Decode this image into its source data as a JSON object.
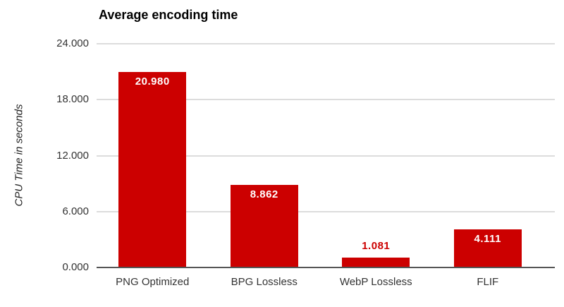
{
  "chart_data": {
    "type": "bar",
    "title": "Average encoding time",
    "xlabel": "",
    "ylabel": "CPU Time in seconds",
    "categories": [
      "PNG Optimized",
      "BPG Lossless",
      "WebP Lossless",
      "FLIF"
    ],
    "values": [
      20.98,
      8.862,
      1.081,
      4.111
    ],
    "value_labels": [
      "20.980",
      "8.862",
      "1.081",
      "4.111"
    ],
    "ylim": [
      0,
      24
    ],
    "y_ticks": [
      {
        "value": 24,
        "label": "24.000"
      },
      {
        "value": 18,
        "label": "18.000"
      },
      {
        "value": 12,
        "label": "12.000"
      },
      {
        "value": 6,
        "label": "6.000"
      },
      {
        "value": 0,
        "label": "0.000"
      }
    ],
    "grid": true,
    "legend": "none",
    "colors": {
      "bar": "#cc0000",
      "annotation_inside": "#ffffff",
      "annotation_outside": "#cc0000",
      "gridline": "#dcdcdc",
      "baseline": "#555555",
      "tick_text": "#333333",
      "category_text": "#333333",
      "title_text": "#000000"
    }
  }
}
